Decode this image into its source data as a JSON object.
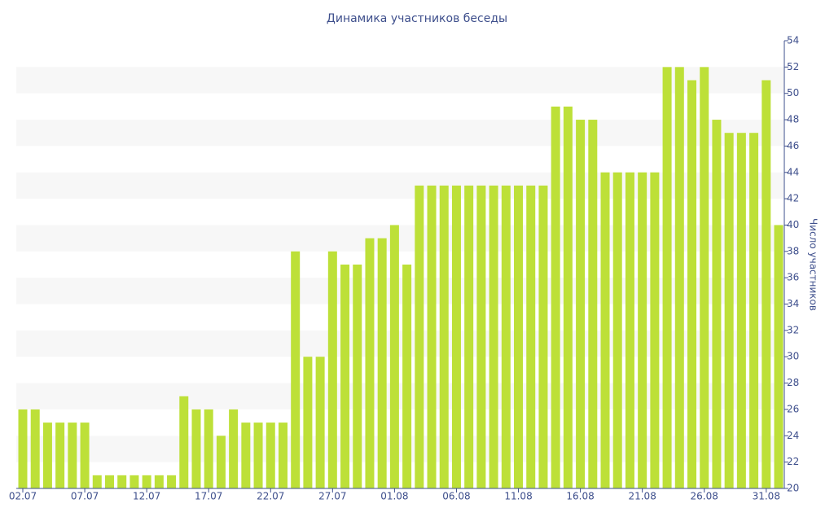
{
  "chart_data": {
    "type": "bar",
    "title": "Динамика участников беседы",
    "y_label": "Число участников",
    "categories": [
      "02.07",
      null,
      null,
      null,
      null,
      "07.07",
      null,
      null,
      null,
      null,
      "12.07",
      null,
      null,
      null,
      null,
      "17.07",
      null,
      null,
      null,
      null,
      "22.07",
      null,
      null,
      null,
      null,
      "27.07",
      null,
      null,
      null,
      null,
      "01.08",
      null,
      null,
      null,
      null,
      "06.08",
      null,
      null,
      null,
      null,
      "11.08",
      null,
      null,
      null,
      null,
      "16.08",
      null,
      null,
      null,
      null,
      "21.08",
      null,
      null,
      null,
      null,
      "26.08",
      null,
      null,
      null,
      null,
      "31.08",
      null
    ],
    "values": [
      26,
      26,
      25,
      25,
      25,
      25,
      21,
      21,
      21,
      21,
      21,
      21,
      21,
      27,
      26,
      26,
      24,
      26,
      25,
      25,
      25,
      25,
      38,
      30,
      30,
      38,
      37,
      37,
      39,
      39,
      40,
      37,
      43,
      43,
      43,
      43,
      43,
      43,
      43,
      43,
      43,
      43,
      43,
      49,
      49,
      48,
      48,
      44,
      44,
      44,
      44,
      44,
      52,
      52,
      51,
      52,
      48,
      47,
      47,
      47,
      51,
      40
    ],
    "color": "#bde038",
    "ylim": [
      20,
      54
    ],
    "yticks": [
      20,
      22,
      24,
      26,
      28,
      30,
      32,
      34,
      36,
      38,
      40,
      42,
      44,
      46,
      48,
      50,
      52,
      54
    ],
    "grid": true
  }
}
